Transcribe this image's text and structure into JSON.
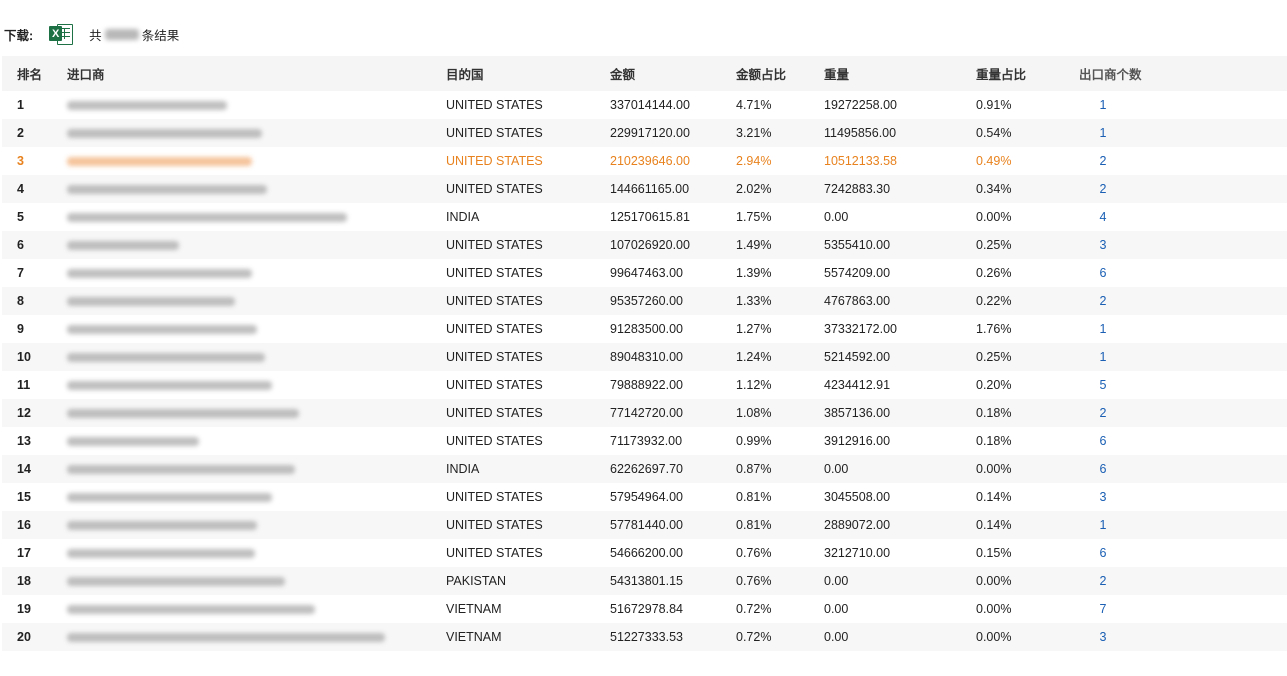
{
  "toolbar": {
    "download_label": "下载:",
    "excel_glyph": "X",
    "total_prefix": "共",
    "total_suffix": "条结果"
  },
  "table": {
    "columns": [
      "排名",
      "进口商",
      "目的国",
      "金额",
      "金额占比",
      "重量",
      "重量占比",
      "出口商个数"
    ],
    "rows": [
      {
        "rank": "1",
        "country": "UNITED STATES",
        "amount": "337014144.00",
        "amount_pct": "4.71%",
        "weight": "19272258.00",
        "weight_pct": "0.91%",
        "exporters": "1"
      },
      {
        "rank": "2",
        "country": "UNITED STATES",
        "amount": "229917120.00",
        "amount_pct": "3.21%",
        "weight": "11495856.00",
        "weight_pct": "0.54%",
        "exporters": "1"
      },
      {
        "rank": "3",
        "country": "UNITED STATES",
        "amount": "210239646.00",
        "amount_pct": "2.94%",
        "weight": "10512133.58",
        "weight_pct": "0.49%",
        "exporters": "2",
        "highlight": true
      },
      {
        "rank": "4",
        "country": "UNITED STATES",
        "amount": "144661165.00",
        "amount_pct": "2.02%",
        "weight": "7242883.30",
        "weight_pct": "0.34%",
        "exporters": "2"
      },
      {
        "rank": "5",
        "country": "INDIA",
        "amount": "125170615.81",
        "amount_pct": "1.75%",
        "weight": "0.00",
        "weight_pct": "0.00%",
        "exporters": "4"
      },
      {
        "rank": "6",
        "country": "UNITED STATES",
        "amount": "107026920.00",
        "amount_pct": "1.49%",
        "weight": "5355410.00",
        "weight_pct": "0.25%",
        "exporters": "3"
      },
      {
        "rank": "7",
        "country": "UNITED STATES",
        "amount": "99647463.00",
        "amount_pct": "1.39%",
        "weight": "5574209.00",
        "weight_pct": "0.26%",
        "exporters": "6"
      },
      {
        "rank": "8",
        "country": "UNITED STATES",
        "amount": "95357260.00",
        "amount_pct": "1.33%",
        "weight": "4767863.00",
        "weight_pct": "0.22%",
        "exporters": "2"
      },
      {
        "rank": "9",
        "country": "UNITED STATES",
        "amount": "91283500.00",
        "amount_pct": "1.27%",
        "weight": "37332172.00",
        "weight_pct": "1.76%",
        "exporters": "1"
      },
      {
        "rank": "10",
        "country": "UNITED STATES",
        "amount": "89048310.00",
        "amount_pct": "1.24%",
        "weight": "5214592.00",
        "weight_pct": "0.25%",
        "exporters": "1"
      },
      {
        "rank": "11",
        "country": "UNITED STATES",
        "amount": "79888922.00",
        "amount_pct": "1.12%",
        "weight": "4234412.91",
        "weight_pct": "0.20%",
        "exporters": "5"
      },
      {
        "rank": "12",
        "country": "UNITED STATES",
        "amount": "77142720.00",
        "amount_pct": "1.08%",
        "weight": "3857136.00",
        "weight_pct": "0.18%",
        "exporters": "2"
      },
      {
        "rank": "13",
        "country": "UNITED STATES",
        "amount": "71173932.00",
        "amount_pct": "0.99%",
        "weight": "3912916.00",
        "weight_pct": "0.18%",
        "exporters": "6"
      },
      {
        "rank": "14",
        "country": "INDIA",
        "amount": "62262697.70",
        "amount_pct": "0.87%",
        "weight": "0.00",
        "weight_pct": "0.00%",
        "exporters": "6"
      },
      {
        "rank": "15",
        "country": "UNITED STATES",
        "amount": "57954964.00",
        "amount_pct": "0.81%",
        "weight": "3045508.00",
        "weight_pct": "0.14%",
        "exporters": "3"
      },
      {
        "rank": "16",
        "country": "UNITED STATES",
        "amount": "57781440.00",
        "amount_pct": "0.81%",
        "weight": "2889072.00",
        "weight_pct": "0.14%",
        "exporters": "1"
      },
      {
        "rank": "17",
        "country": "UNITED STATES",
        "amount": "54666200.00",
        "amount_pct": "0.76%",
        "weight": "3212710.00",
        "weight_pct": "0.15%",
        "exporters": "6"
      },
      {
        "rank": "18",
        "country": "PAKISTAN",
        "amount": "54313801.15",
        "amount_pct": "0.76%",
        "weight": "0.00",
        "weight_pct": "0.00%",
        "exporters": "2"
      },
      {
        "rank": "19",
        "country": "VIETNAM",
        "amount": "51672978.84",
        "amount_pct": "0.72%",
        "weight": "0.00",
        "weight_pct": "0.00%",
        "exporters": "7"
      },
      {
        "rank": "20",
        "country": "VIETNAM",
        "amount": "51227333.53",
        "amount_pct": "0.72%",
        "weight": "0.00",
        "weight_pct": "0.00%",
        "exporters": "3"
      }
    ]
  },
  "colors": {
    "highlight": "#e8821e",
    "link": "#1a5fb4",
    "excel_green": "#1e7145",
    "header_bg": "#f5f5f5",
    "stripe_bg": "#f7f7f7"
  },
  "icons": {
    "excel": "excel-icon"
  }
}
